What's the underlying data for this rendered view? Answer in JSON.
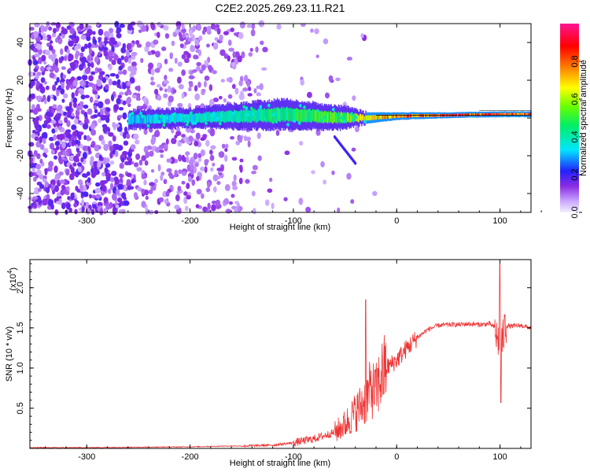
{
  "title": "C2E2.2025.269.23.11.R21",
  "chart_data": [
    {
      "type": "heatmap",
      "name": "spectrogram",
      "xlabel": "Height of straight line (km)",
      "ylabel": "Frequency (Hz)",
      "xlim": [
        -355,
        130
      ],
      "ylim": [
        -50,
        50
      ],
      "xticks": [
        -300,
        -200,
        -100,
        0,
        100
      ],
      "yticks": [
        -40,
        -20,
        0,
        20,
        40
      ],
      "colorbar": {
        "label": "Normalized spectral amplitude",
        "range": [
          0,
          1
        ],
        "ticks": [
          0.0,
          0.2,
          0.4,
          0.6,
          0.8
        ],
        "tick_labels": [
          "0.0",
          "0.2",
          "0.4",
          "0.6",
          "0.8"
        ]
      },
      "ridge": {
        "description": "signal band centered near 0 Hz",
        "x": [
          -260,
          -200,
          -150,
          -110,
          -80,
          -50,
          -30,
          0,
          50,
          100,
          130
        ],
        "center_hz": [
          -1,
          0,
          1,
          2,
          1,
          0,
          0,
          1,
          1.5,
          2,
          2
        ],
        "halfwidth_hz": [
          5,
          5,
          7,
          8,
          7,
          6,
          3,
          2,
          1.5,
          1.5,
          1.5
        ],
        "amplitude": [
          0.35,
          0.4,
          0.45,
          0.5,
          0.55,
          0.6,
          0.7,
          0.85,
          0.92,
          0.9,
          0.9
        ]
      }
    },
    {
      "type": "line",
      "name": "snr",
      "xlabel": "Height of straight line (km)",
      "ylabel": "SNR (10 * v/v)",
      "scale_label": "(x10",
      "scale_exponent": "4",
      "scale_close": ")",
      "xlim": [
        -355,
        130
      ],
      "ylim": [
        0,
        2.35
      ],
      "xticks": [
        -300,
        -200,
        -100,
        0,
        100
      ],
      "yticks": [
        0.5,
        1.0,
        1.5,
        2.0
      ],
      "ytick_labels": [
        "0.5",
        "1.0",
        "1.5",
        "2.0"
      ],
      "color": "#ee3333",
      "series": [
        {
          "name": "SNR",
          "x": [
            -355,
            -300,
            -250,
            -200,
            -160,
            -150,
            -120,
            -100,
            -80,
            -60,
            -50,
            -40,
            -30,
            -25,
            -20,
            -15,
            -10,
            0,
            10,
            20,
            30,
            40,
            50,
            60,
            70,
            80,
            90,
            95,
            98,
            100,
            102,
            105,
            110,
            120,
            130
          ],
          "y": [
            0.01,
            0.01,
            0.015,
            0.02,
            0.03,
            0.03,
            0.04,
            0.07,
            0.12,
            0.2,
            0.3,
            0.45,
            0.6,
            0.75,
            0.7,
            0.9,
            1.0,
            1.1,
            1.25,
            1.38,
            1.48,
            1.53,
            1.54,
            1.54,
            1.55,
            1.54,
            1.55,
            1.5,
            1.3,
            1.55,
            1.3,
            1.53,
            1.52,
            1.53,
            1.5
          ],
          "peaks": [
            {
              "x": -30,
              "y": 1.85
            },
            {
              "x": 100,
              "y": 2.3
            },
            {
              "x": 101,
              "y": 0.57
            }
          ]
        }
      ]
    }
  ]
}
